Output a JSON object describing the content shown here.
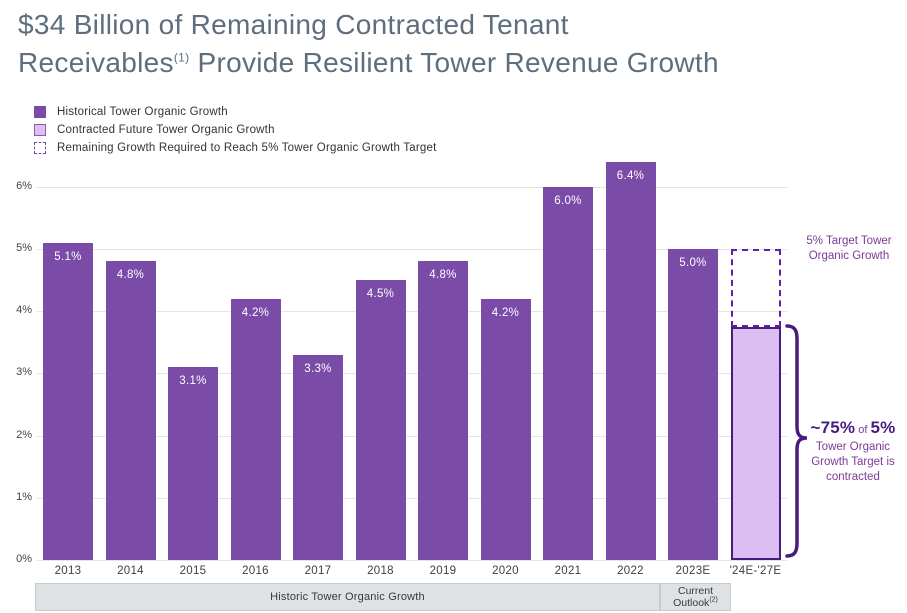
{
  "title": {
    "line1": "$34 Billion of Remaining Contracted Tenant",
    "line2_pre": "Receivables",
    "line2_sup": "(1)",
    "line2_post": " Provide Resilient Tower Revenue Growth"
  },
  "legend": {
    "items": [
      {
        "label": "Historical Tower Organic Growth",
        "swatch": "solid-purple"
      },
      {
        "label": "Contracted Future Tower Organic Growth",
        "swatch": "light-purple"
      },
      {
        "label": "Remaining Growth Required to Reach 5% Tower Organic Growth Target",
        "swatch": "dashed-outline"
      }
    ]
  },
  "axis": {
    "y_ticks": [
      "0%",
      "1%",
      "2%",
      "3%",
      "4%",
      "5%",
      "6%"
    ]
  },
  "annotations": {
    "target_label": "5% Target Tower Organic Growth",
    "contracted_pct": "~75%",
    "contracted_of": " of ",
    "contracted_target": "5%",
    "contracted_rest": "Tower Organic Growth Target is contracted"
  },
  "footer": {
    "historic_label": "Historic Tower Organic Growth",
    "outlook_line1": "Current",
    "outlook_line2": "Outlook",
    "outlook_sup": "(2)"
  },
  "colors": {
    "bar_purple": "#7B4BA8",
    "light_purple": "#DDBEF2",
    "dark_purple": "#4A1B7F",
    "annotation_purple": "#7D3A97",
    "title_slate": "#5E6E7E",
    "gridline_gray": "#E4E4E4",
    "band_gray": "#DEE2E4"
  },
  "chart_data": {
    "type": "bar",
    "title": "$34 Billion of Remaining Contracted Tenant Receivables(1) Provide Resilient Tower Revenue Growth",
    "categories": [
      "2013",
      "2014",
      "2015",
      "2016",
      "2017",
      "2018",
      "2019",
      "2020",
      "2021",
      "2022",
      "2023E",
      "'24E-'27E"
    ],
    "series": [
      {
        "name": "Historical Tower Organic Growth",
        "values": [
          5.1,
          4.8,
          3.1,
          4.2,
          3.3,
          4.5,
          4.8,
          4.2,
          6.0,
          6.4,
          5.0,
          null
        ]
      },
      {
        "name": "Contracted Future Tower Organic Growth",
        "values": [
          null,
          null,
          null,
          null,
          null,
          null,
          null,
          null,
          null,
          null,
          null,
          3.75
        ]
      },
      {
        "name": "Remaining Growth Required to Reach 5% Tower Organic Growth Target",
        "values": [
          null,
          null,
          null,
          null,
          null,
          null,
          null,
          null,
          null,
          null,
          null,
          1.25
        ]
      }
    ],
    "bar_labels": [
      "5.1%",
      "4.8%",
      "3.1%",
      "4.2%",
      "3.3%",
      "4.5%",
      "4.8%",
      "4.2%",
      "6.0%",
      "6.4%",
      "5.0%",
      null
    ],
    "target_pct": 5.0,
    "future_contracted_pct": 3.75,
    "xlabel": "",
    "ylabel": "",
    "ylim": [
      0,
      6
    ],
    "grid": true,
    "legend_position": "top-left"
  }
}
